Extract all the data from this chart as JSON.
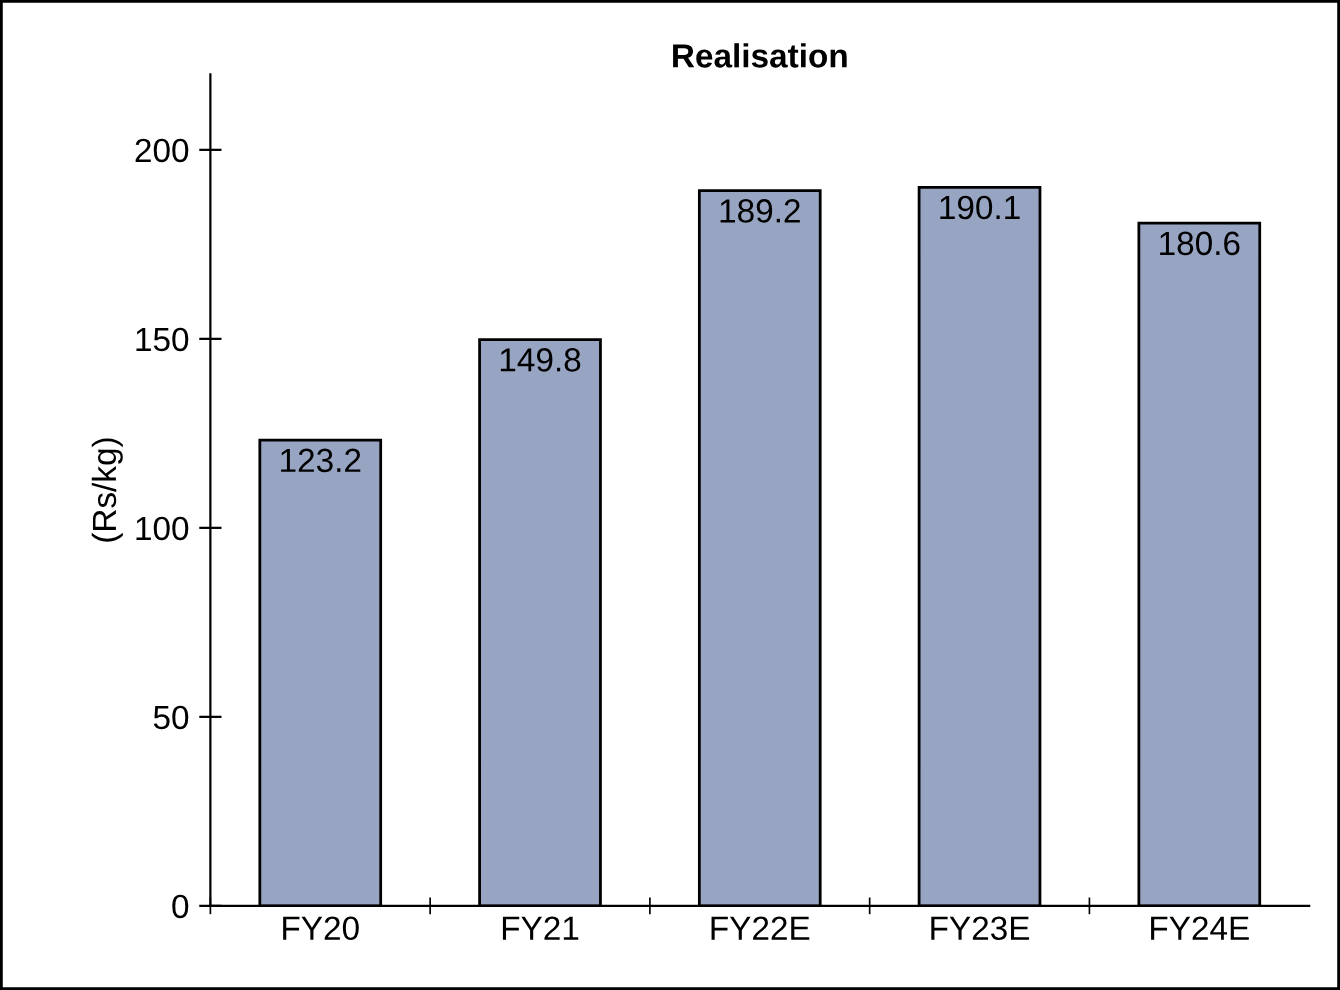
{
  "chart_data": {
    "type": "bar",
    "title": "Realisation",
    "ylabel": "(Rs/kg)",
    "categories": [
      "FY20",
      "FY21",
      "FY22E",
      "FY23E",
      "FY24E"
    ],
    "values": [
      123.2,
      149.8,
      189.2,
      190.1,
      180.6
    ],
    "color": "#97a5c3",
    "ylim": [
      0,
      220
    ],
    "yticks": [
      0,
      50,
      100,
      150,
      200
    ],
    "grid": false,
    "data_labels": true
  }
}
